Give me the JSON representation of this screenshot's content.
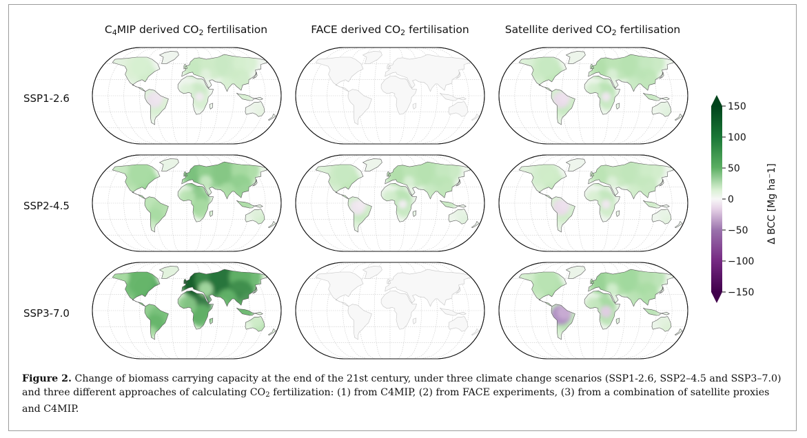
{
  "columns": [
    {
      "pre": "C",
      "pre_sub": "4",
      "mid": "MIP derived CO",
      "sub": "2",
      "post": " fertilisation"
    },
    {
      "pre": "",
      "pre_sub": "",
      "mid": "FACE derived CO",
      "sub": "2",
      "post": " fertilisation"
    },
    {
      "pre": "",
      "pre_sub": "",
      "mid": "Satellite derived CO",
      "sub": "2",
      "post": " fertilisation"
    }
  ],
  "rows": [
    "SSP1-2.6",
    "SSP2-4.5",
    "SSP3-7.0"
  ],
  "map_intensity": [
    [
      0.35,
      0.03,
      0.45
    ],
    [
      0.65,
      0.45,
      0.4
    ],
    [
      0.95,
      0.03,
      0.55
    ]
  ],
  "map_negative": [
    [
      0.2,
      0.0,
      0.25
    ],
    [
      0.0,
      0.15,
      0.25
    ],
    [
      0.0,
      0.0,
      0.6
    ]
  ],
  "colorbar": {
    "label": "Δ BCC [Mg ha⁻1]",
    "ticks": [
      "150",
      "100",
      "50",
      "0",
      "−50",
      "−100",
      "−150"
    ],
    "min": -150,
    "max": 150,
    "colors": {
      "max": "#00441b",
      "mid_pos": "#5aae61",
      "zero": "#f7f7f7",
      "mid_neg": "#9970ab",
      "min": "#40004b"
    }
  },
  "caption": {
    "label": "Figure 2.",
    "text_1": " Change of biomass carrying capacity at the end of the 21st century, under three climate change scenarios (SSP1-2.6, SSP2–4.5 and SSP3–7.0) and three different approaches of calculating CO",
    "sub": "2",
    "text_2": " fertilization: (1) from C4MIP, (2) from FACE experiments, (3) from a combination of satellite proxies and C4MIP."
  }
}
